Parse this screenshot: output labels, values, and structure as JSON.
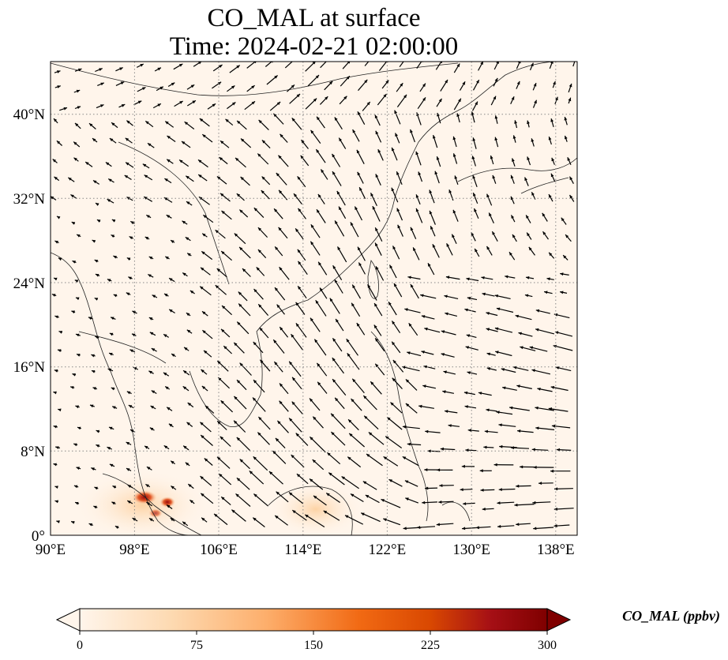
{
  "title": {
    "line1": "CO_MAL at surface",
    "line2": "Time: 2024-02-21 02:00:00"
  },
  "map": {
    "lon_ticks": [
      "90°E",
      "98°E",
      "106°E",
      "114°E",
      "122°E",
      "130°E",
      "138°E"
    ],
    "lat_ticks": [
      "0°",
      "8°N",
      "16°N",
      "24°N",
      "32°N",
      "40°N"
    ],
    "lon_range": [
      90,
      140
    ],
    "lat_range": [
      0,
      45
    ],
    "gridlines": true,
    "background_color": "#fff5eb",
    "hotspot_color": "#9b0a0a"
  },
  "colorbar": {
    "label": "CO_MAL (ppbv)",
    "ticks": [
      "0",
      "75",
      "150",
      "225",
      "300"
    ],
    "range": [
      0,
      300
    ],
    "colormap": [
      "#fff5eb",
      "#fdd9b0",
      "#fdae6b",
      "#f16913",
      "#d94801",
      "#a50f15",
      "#7f0000"
    ],
    "extend": "both"
  }
}
